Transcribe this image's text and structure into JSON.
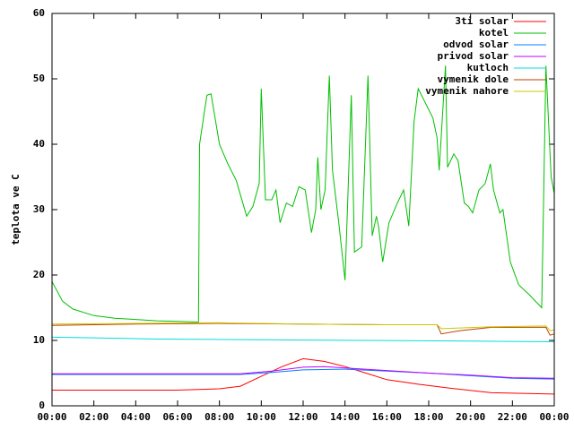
{
  "chart_data": {
    "type": "line",
    "ylabel": "teplota ve C",
    "xlim": [
      0,
      24
    ],
    "xticks": [
      {
        "value": 0,
        "label": "00:00"
      },
      {
        "value": 2,
        "label": "02:00"
      },
      {
        "value": 4,
        "label": "04:00"
      },
      {
        "value": 6,
        "label": "06:00"
      },
      {
        "value": 8,
        "label": "08:00"
      },
      {
        "value": 10,
        "label": "10:00"
      },
      {
        "value": 12,
        "label": "12:00"
      },
      {
        "value": 14,
        "label": "14:00"
      },
      {
        "value": 16,
        "label": "16:00"
      },
      {
        "value": 18,
        "label": "18:00"
      },
      {
        "value": 20,
        "label": "20:00"
      },
      {
        "value": 22,
        "label": "22:00"
      },
      {
        "value": 24,
        "label": "00:00"
      }
    ],
    "ylim": [
      0,
      60
    ],
    "yticks": [
      0,
      10,
      20,
      30,
      40,
      50,
      60
    ],
    "legend": "top-right",
    "series": [
      {
        "name": "3ti solar",
        "color": "#ff0000",
        "x": [
          0,
          3,
          6,
          7,
          8,
          9,
          10,
          11,
          12,
          13,
          14,
          15,
          16,
          17.5,
          19,
          21,
          22.5,
          24
        ],
        "values": [
          2.4,
          2.4,
          2.4,
          2.5,
          2.6,
          3,
          4.5,
          6,
          7.2,
          6.8,
          6,
          5,
          4,
          3.3,
          2.7,
          2,
          1.9,
          1.8
        ]
      },
      {
        "name": "kotel",
        "color": "#00c000",
        "x": [
          0,
          0.5,
          1,
          2,
          3,
          4,
          5,
          6,
          7,
          7.05,
          7.4,
          7.6,
          8.0,
          8.4,
          8.8,
          9.3,
          9.6,
          9.9,
          10.0,
          10.2,
          10.5,
          10.7,
          10.9,
          11.2,
          11.5,
          11.8,
          12.1,
          12.4,
          12.6,
          12.7,
          12.85,
          13.05,
          13.25,
          13.4,
          13.7,
          14.0,
          14.3,
          14.45,
          14.8,
          15.1,
          15.3,
          15.5,
          15.6,
          15.8,
          16.1,
          16.5,
          16.8,
          17.05,
          17.3,
          17.5,
          18.2,
          18.4,
          18.5,
          18.8,
          18.9,
          19.2,
          19.4,
          19.7,
          19.9,
          20.1,
          20.4,
          20.7,
          20.95,
          21.1,
          21.4,
          21.55,
          21.9,
          22.3,
          22.8,
          23.4,
          23.6,
          23.85,
          24
        ],
        "values": [
          19,
          16,
          14.8,
          13.8,
          13.4,
          13.2,
          13.0,
          12.9,
          12.8,
          40,
          47.5,
          47.7,
          40,
          37,
          34.5,
          29,
          30.5,
          34,
          48.5,
          31.5,
          31.5,
          33,
          28,
          31,
          30.5,
          33.5,
          33,
          26.5,
          30,
          38,
          30,
          33,
          50.5,
          36,
          28,
          19.2,
          47.5,
          23.5,
          24.3,
          50.5,
          26,
          29,
          27.5,
          22,
          28,
          31,
          33,
          27.5,
          43.5,
          48.5,
          44,
          41,
          36,
          52,
          36.5,
          38.5,
          37.5,
          31,
          30.5,
          29.5,
          33,
          34,
          37,
          33,
          29.5,
          30,
          22,
          18.5,
          17,
          15,
          52,
          35,
          32.5
        ]
      },
      {
        "name": "odvod solar",
        "color": "#0080ff",
        "x": [
          0,
          4,
          9,
          10.5,
          12,
          14,
          16,
          18,
          20,
          22,
          24
        ],
        "values": [
          4.8,
          4.8,
          4.8,
          5.1,
          5.5,
          5.6,
          5.3,
          5,
          4.6,
          4.2,
          4.1
        ]
      },
      {
        "name": "privod solar",
        "color": "#c000ff",
        "x": [
          0,
          4,
          9,
          10.5,
          12,
          13,
          14,
          16,
          18,
          20,
          22,
          24
        ],
        "values": [
          4.9,
          4.9,
          4.9,
          5.3,
          5.9,
          6,
          5.8,
          5.4,
          5,
          4.7,
          4.3,
          4.2
        ]
      },
      {
        "name": "kutloch",
        "color": "#00dddd",
        "x": [
          0,
          2,
          5,
          10,
          15,
          20,
          24
        ],
        "values": [
          10.5,
          10.4,
          10.2,
          10.1,
          10.0,
          9.9,
          9.8
        ]
      },
      {
        "name": "vymenik dole",
        "color": "#c04000",
        "x": [
          0,
          4,
          8,
          12,
          16,
          18.4,
          18.6,
          19.5,
          21,
          23.6,
          23.8,
          24
        ],
        "values": [
          12.3,
          12.5,
          12.6,
          12.5,
          12.4,
          12.4,
          11,
          11.5,
          12,
          12,
          10.8,
          11
        ]
      },
      {
        "name": "vymenik nahore",
        "color": "#c8c800",
        "x": [
          0,
          4,
          8,
          12,
          16,
          18.4,
          18.6,
          19.5,
          21,
          23.6,
          23.8,
          24
        ],
        "values": [
          12.5,
          12.6,
          12.7,
          12.5,
          12.4,
          12.4,
          11.8,
          11.9,
          12.1,
          12.2,
          11.5,
          11.6
        ]
      }
    ]
  }
}
